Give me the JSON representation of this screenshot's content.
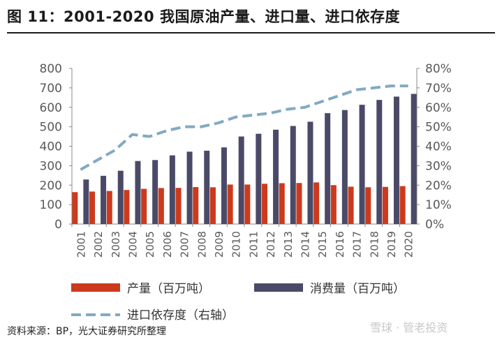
{
  "header": {
    "title": "图 11：2001-2020 我国原油产量、进口量、进口依存度"
  },
  "footer": {
    "source": "资料来源：BP，光大证券研究所整理",
    "watermark": "雪球 · 管老投资"
  },
  "colors": {
    "production": "#cc3a1d",
    "consumption": "#4a4a68",
    "dependency": "#82aac0",
    "axis": "#888888",
    "tick_text": "#595959"
  },
  "chart_data": {
    "type": "bar+line",
    "title": "2001-2020 我国原油产量、进口量、进口依存度",
    "categories": [
      "2001",
      "2002",
      "2003",
      "2004",
      "2005",
      "2006",
      "2007",
      "2008",
      "2009",
      "2010",
      "2011",
      "2012",
      "2013",
      "2014",
      "2015",
      "2016",
      "2017",
      "2018",
      "2019",
      "2020"
    ],
    "y_left": {
      "min": 0,
      "max": 800,
      "ticks": [
        "0",
        "100",
        "200",
        "300",
        "400",
        "500",
        "600",
        "700",
        "800"
      ]
    },
    "y_right": {
      "min": 0,
      "max": 0.8,
      "ticks": [
        "0%",
        "10%",
        "20%",
        "30%",
        "40%",
        "50%",
        "60%",
        "70%",
        "80%"
      ]
    },
    "series": [
      {
        "name": "产量（百万吨）",
        "type": "bar",
        "axis": "left",
        "values": [
          164,
          167,
          170,
          175,
          181,
          185,
          186,
          190,
          189,
          203,
          203,
          207,
          210,
          211,
          214,
          200,
          192,
          189,
          191,
          195
        ]
      },
      {
        "name": "消费量（百万吨）",
        "type": "bar",
        "axis": "left",
        "values": [
          229,
          248,
          274,
          324,
          329,
          353,
          372,
          377,
          394,
          450,
          464,
          485,
          504,
          526,
          570,
          586,
          613,
          638,
          655,
          669
        ]
      },
      {
        "name": "进口依存度（右轴）",
        "type": "line",
        "axis": "right",
        "style": "dashed",
        "values": [
          0.28,
          0.33,
          0.38,
          0.46,
          0.45,
          0.48,
          0.5,
          0.5,
          0.52,
          0.55,
          0.56,
          0.57,
          0.59,
          0.6,
          0.63,
          0.66,
          0.69,
          0.7,
          0.71,
          0.71
        ]
      }
    ],
    "legend": {
      "placement": "bottom"
    },
    "grid": false
  }
}
